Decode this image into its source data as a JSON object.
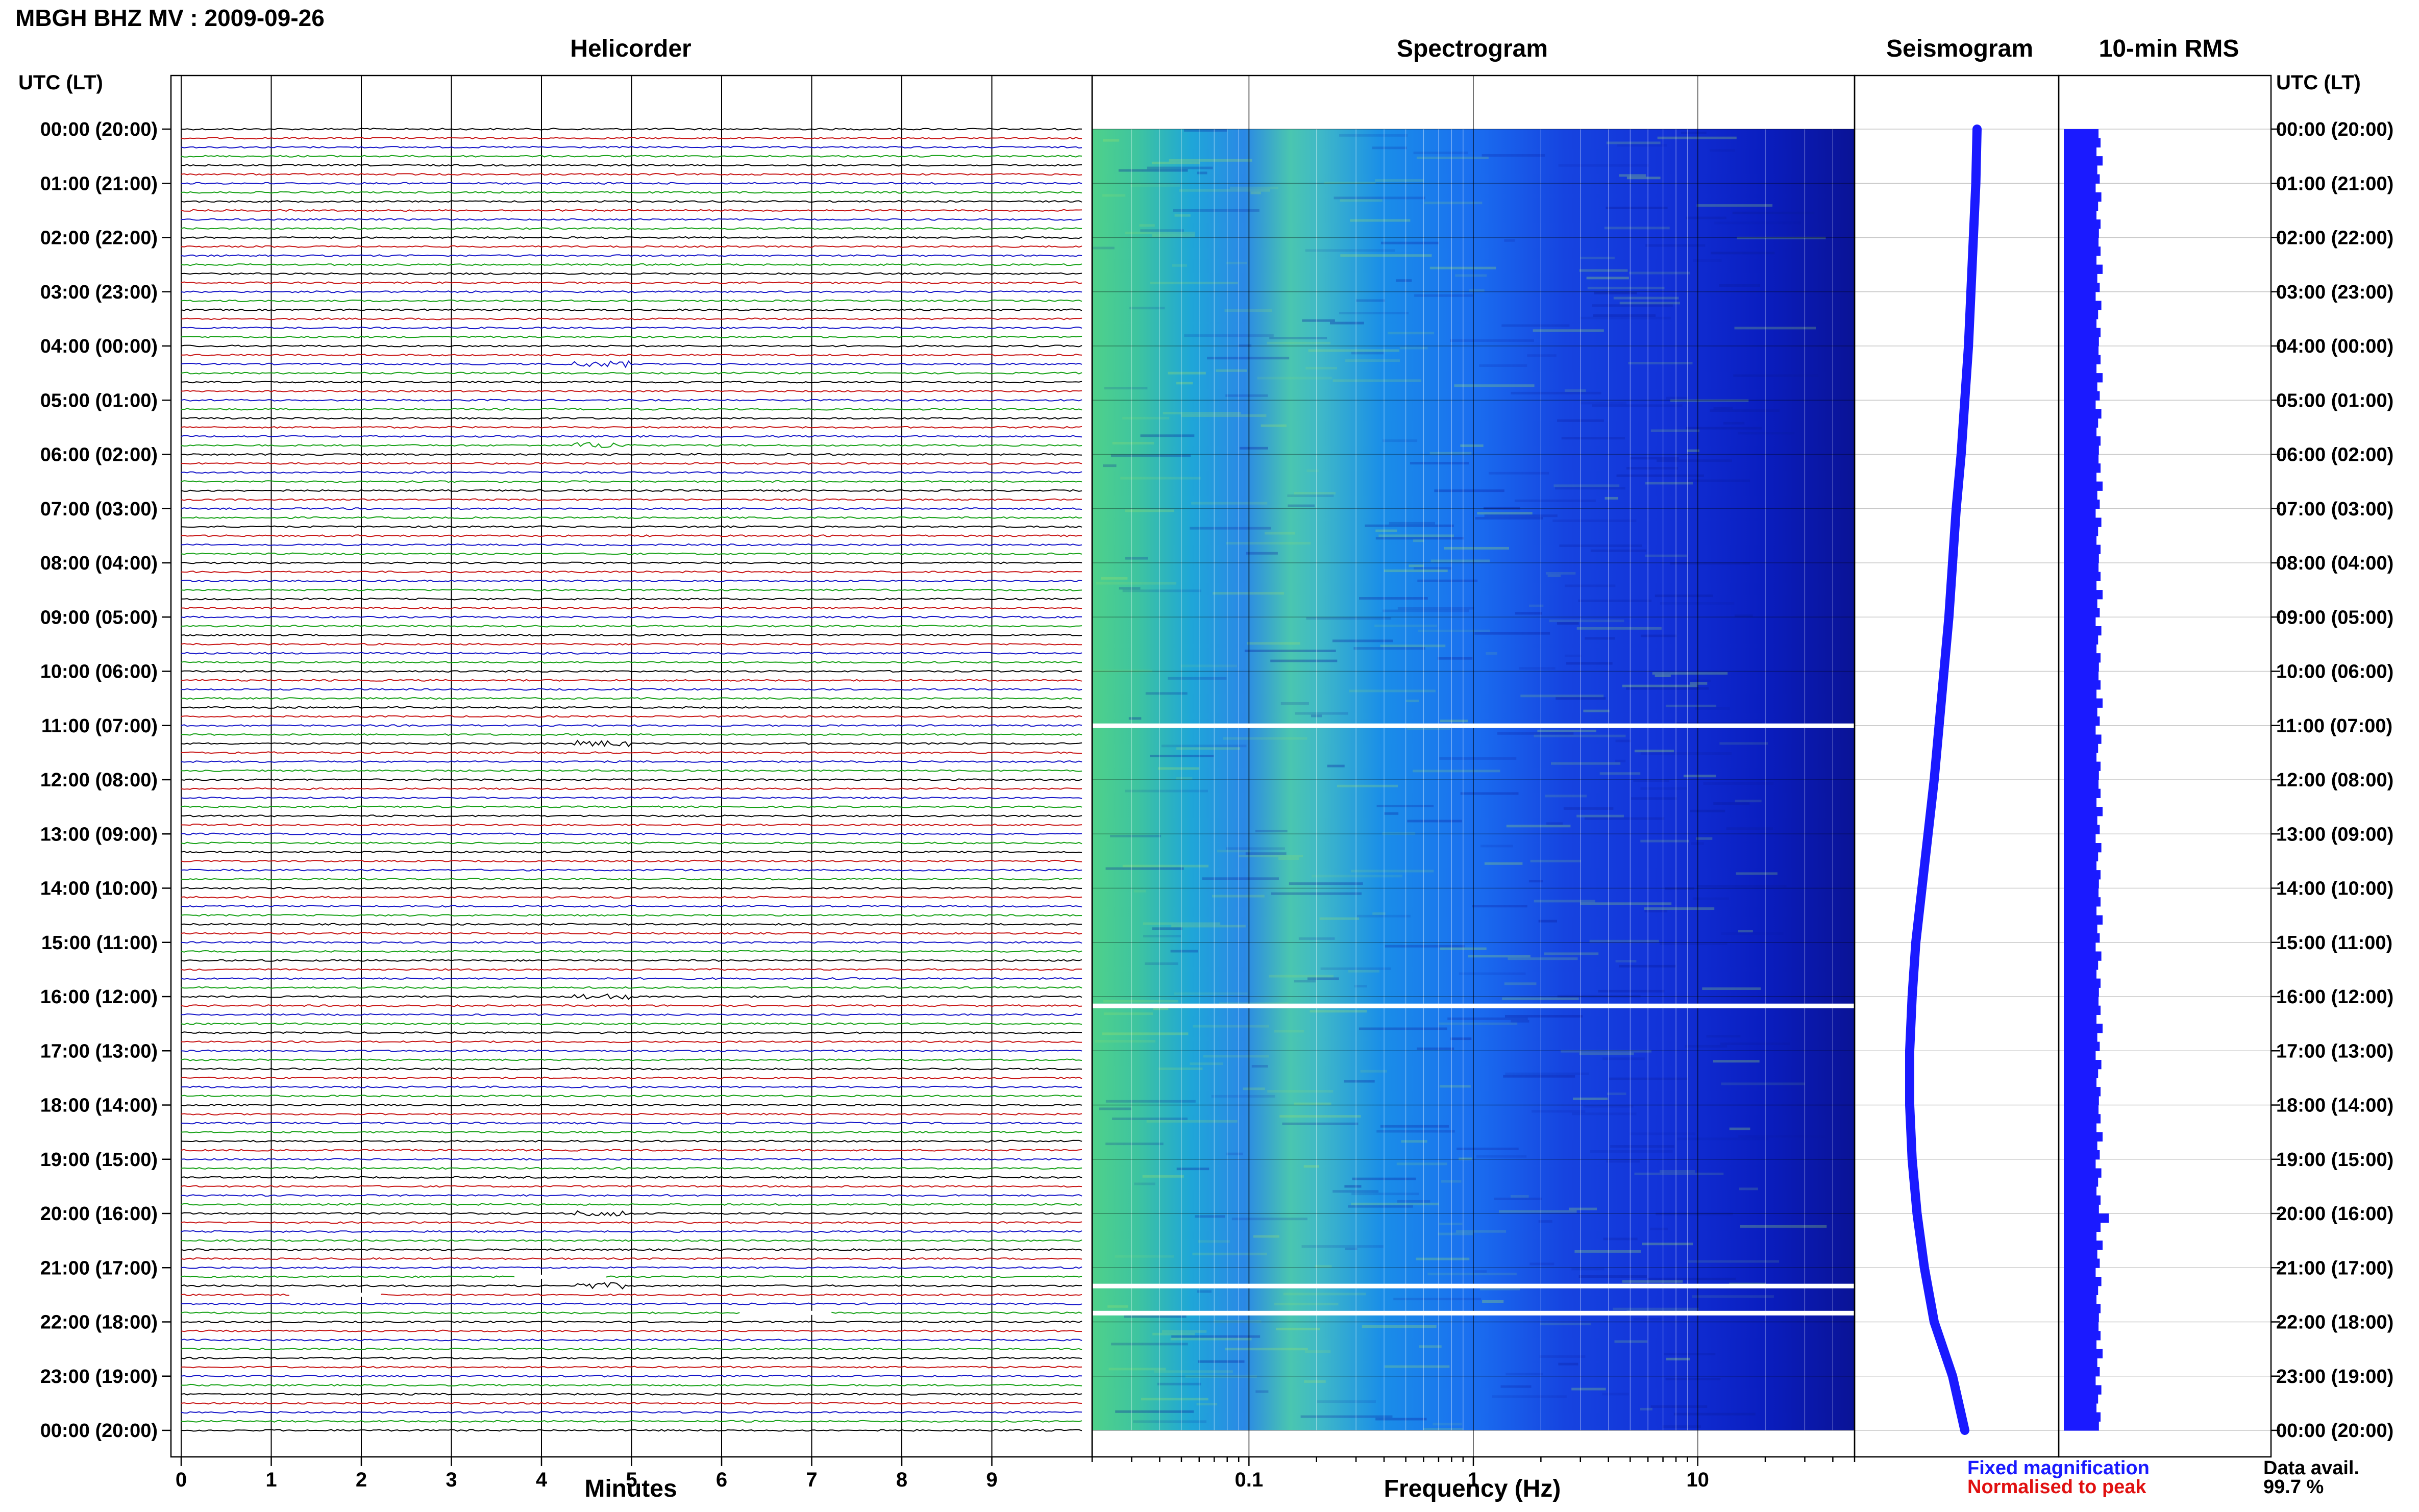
{
  "header": {
    "title": "MBGH BHZ MV : 2009-09-26"
  },
  "panels": {
    "helicorder": "Helicorder",
    "spectrogram": "Spectrogram",
    "seismogram": "Seismogram",
    "rms": "10-min RMS"
  },
  "utc_header_left": "UTC (LT)",
  "utc_header_right": "UTC (LT)",
  "legend": {
    "fixed": "Fixed magnification",
    "normalised": "Normalised to peak"
  },
  "data_avail": {
    "label": "Data avail.",
    "value": "99.7 %"
  },
  "colors": {
    "trace_black": "#000000",
    "trace_red": "#c81414",
    "trace_blue": "#1414c8",
    "trace_green": "#14a014",
    "seismogram": "#1a1aff",
    "rms": "#1a1aff"
  },
  "chart_data": [
    {
      "type": "line",
      "panel": "helicorder",
      "title": "Helicorder",
      "xlabel": "Minutes",
      "x_ticks": [
        "0",
        "1",
        "2",
        "3",
        "4",
        "5",
        "6",
        "7",
        "8",
        "9"
      ],
      "xlim": [
        0,
        10
      ],
      "y_tick_labels": [
        "00:00 (20:00)",
        "01:00 (21:00)",
        "02:00 (22:00)",
        "03:00 (23:00)",
        "04:00 (00:00)",
        "05:00 (01:00)",
        "06:00 (02:00)",
        "07:00 (03:00)",
        "08:00 (04:00)",
        "09:00 (05:00)",
        "10:00 (06:00)",
        "11:00 (07:00)",
        "12:00 (08:00)",
        "13:00 (09:00)",
        "14:00 (10:00)",
        "15:00 (11:00)",
        "16:00 (12:00)",
        "17:00 (13:00)",
        "18:00 (14:00)",
        "19:00 (15:00)",
        "20:00 (16:00)",
        "21:00 (17:00)",
        "22:00 (18:00)",
        "23:00 (19:00)",
        "00:00 (20:00)"
      ],
      "trace_color_cycle": [
        "black",
        "red",
        "blue",
        "green"
      ],
      "lines_per_hour": 6,
      "minutes_per_line": 10,
      "grid": true,
      "gaps_utc": [
        "21:10",
        "21:30",
        "21:50"
      ],
      "events_utc": [
        "04:20",
        "05:50",
        "11:20",
        "16:00",
        "20:00",
        "21:20"
      ]
    },
    {
      "type": "heatmap",
      "panel": "spectrogram",
      "title": "Spectrogram",
      "xlabel": "Frequency (Hz)",
      "x_scale": "log",
      "x_ticks": [
        "0.1",
        "1",
        "10"
      ],
      "xlim": [
        0.02,
        50
      ],
      "colormap": "parula",
      "peak_band_hz": [
        0.2,
        0.35
      ],
      "gaps_utc": [
        "11:00",
        "16:10",
        "21:20",
        "21:50"
      ]
    },
    {
      "type": "line",
      "panel": "seismogram",
      "title": "Seismogram",
      "xlabel": "",
      "grid": true,
      "values": [
        0.75,
        0.74,
        0.72,
        0.7,
        0.68,
        0.65,
        0.62,
        0.58,
        0.55,
        0.52,
        0.48,
        0.44,
        0.4,
        0.35,
        0.3,
        0.25,
        0.22,
        0.2,
        0.2,
        0.22,
        0.26,
        0.32,
        0.4,
        0.55,
        0.65
      ]
    },
    {
      "type": "bar",
      "panel": "rms",
      "title": "10-min RMS",
      "xlabel": "",
      "grid": true,
      "values_pattern": [
        0.85,
        0.9,
        0.8,
        0.95,
        0.82,
        0.88,
        0.78,
        0.92,
        0.84,
        0.8,
        0.9,
        0.86
      ],
      "spike_utc": "20:00",
      "spike_value": 1.1
    }
  ]
}
